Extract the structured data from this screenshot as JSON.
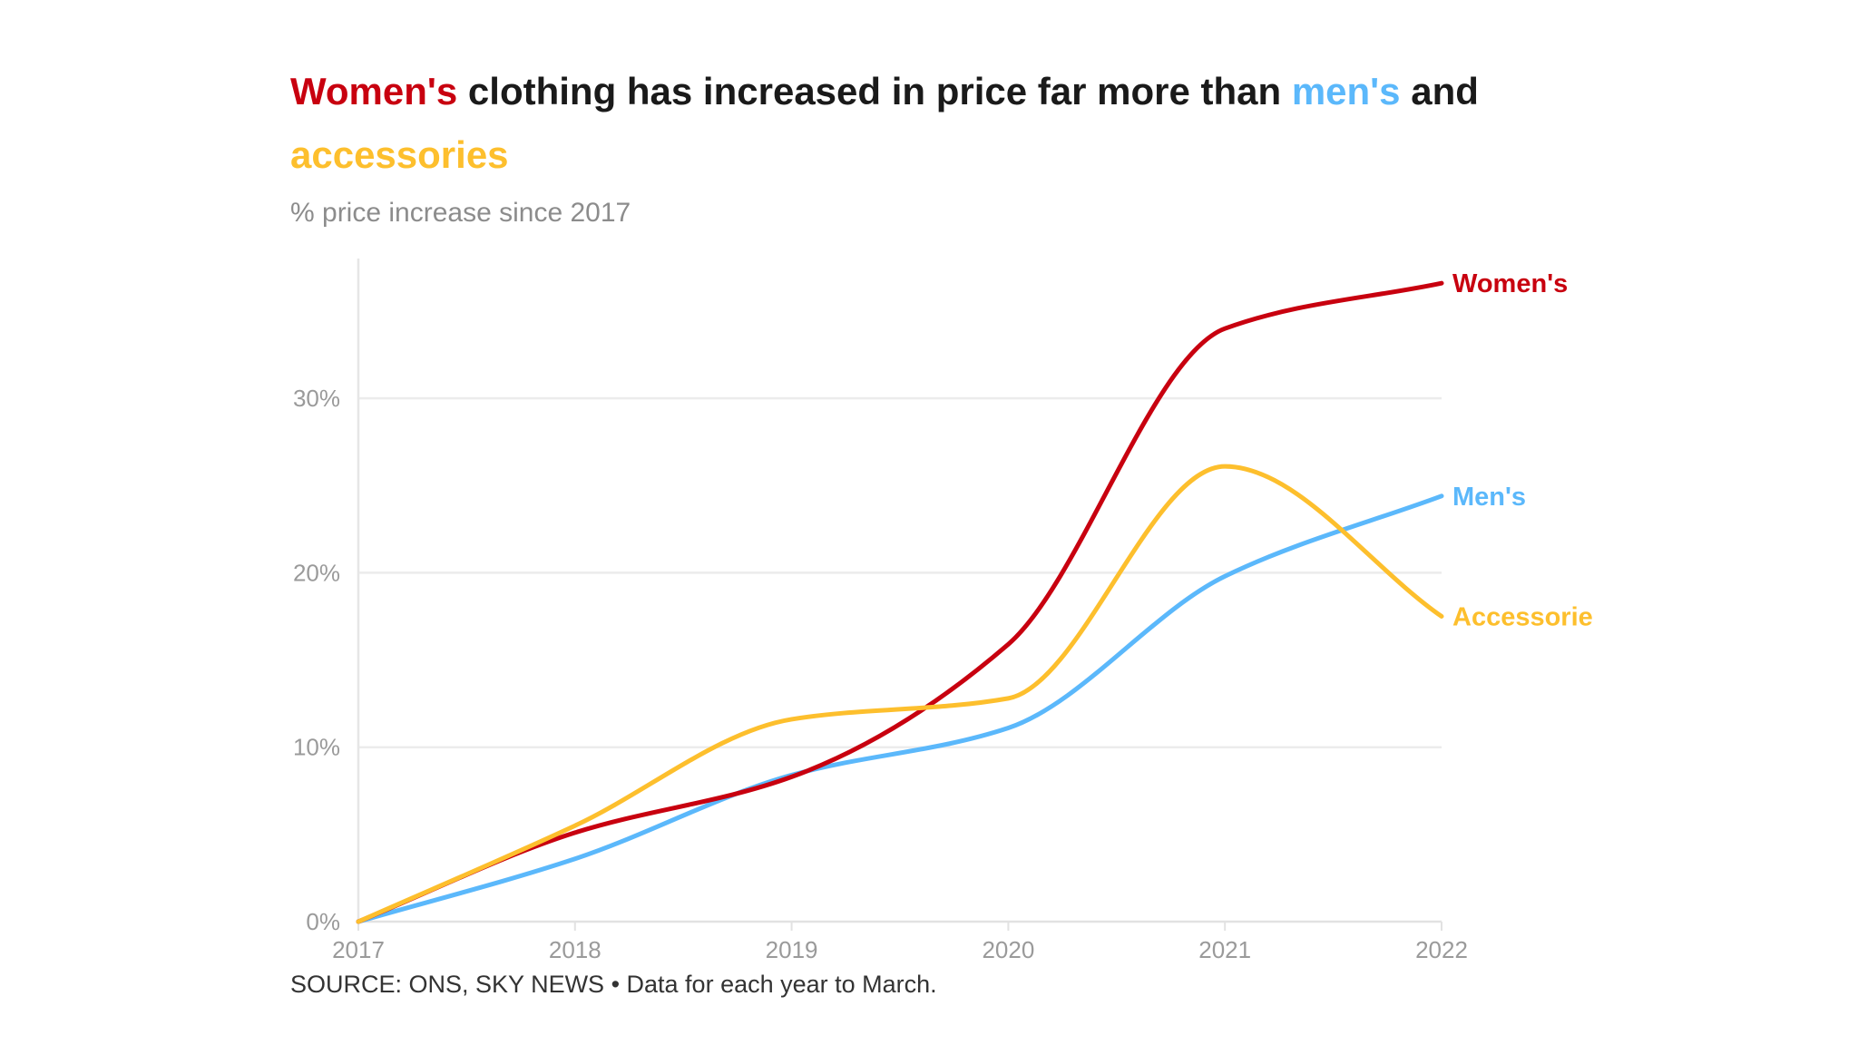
{
  "chart_data": {
    "type": "line",
    "title_parts": [
      {
        "text": "Women's",
        "color": "#c8000f"
      },
      {
        "text": " clothing has increased in price far more than ",
        "color": "#1a1a1a"
      },
      {
        "text": "men's",
        "color": "#5bb8fb"
      },
      {
        "text": " and ",
        "color": "#1a1a1a"
      },
      {
        "text": "accessories",
        "color": "#fdbf2d"
      }
    ],
    "subtitle": "% price increase since 2017",
    "source": "SOURCE: ONS, SKY NEWS • Data for each year to March.",
    "x": [
      2017,
      2018,
      2019,
      2020,
      2021,
      2022
    ],
    "x_tick_labels": [
      "2017",
      "2018",
      "2019",
      "2020",
      "2021",
      "2022"
    ],
    "y_ticks": [
      0,
      10,
      20,
      30
    ],
    "y_tick_labels": [
      "0%",
      "10%",
      "20%",
      "30%"
    ],
    "ylim": [
      0,
      38
    ],
    "grid": true,
    "legend": "direct labels at line ends (right)",
    "series": [
      {
        "name": "Women's",
        "color": "#c8000f",
        "values": [
          0,
          5.1,
          8.3,
          15.9,
          34.0,
          36.6
        ]
      },
      {
        "name": "Men's",
        "color": "#5bb8fb",
        "values": [
          0,
          3.6,
          8.4,
          11.1,
          19.8,
          24.4
        ]
      },
      {
        "name": "Accessorie",
        "color": "#fdbf2d",
        "values": [
          0,
          5.5,
          11.6,
          12.8,
          26.1,
          17.5
        ]
      }
    ]
  }
}
